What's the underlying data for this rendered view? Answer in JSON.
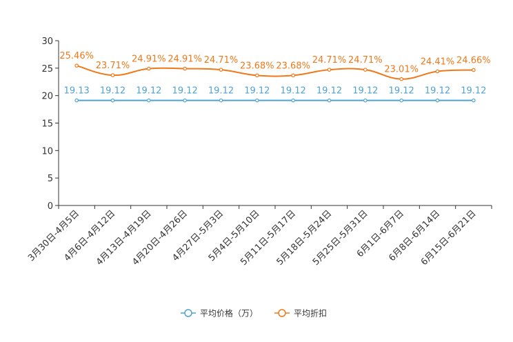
{
  "chart_data": {
    "type": "line",
    "categories": [
      "3月30日-4月5日",
      "4月6日-4月12日",
      "4月13日-4月19日",
      "4月20日-4月26日",
      "4月27日-5月3日",
      "5月4日-5月10日",
      "5月11日-5月17日",
      "5月18日-5月24日",
      "5月25日-5月31日",
      "6月1日-6月7日",
      "6月8日-6月14日",
      "6月15日-6月21日"
    ],
    "series": [
      {
        "name": "平均价格（万）",
        "color": "#4fa3d1",
        "values": [
          19.13,
          19.12,
          19.12,
          19.12,
          19.12,
          19.12,
          19.12,
          19.12,
          19.12,
          19.12,
          19.12,
          19.12
        ],
        "labels": [
          "19.13",
          "19.12",
          "19.12",
          "19.12",
          "19.12",
          "19.12",
          "19.12",
          "19.12",
          "19.12",
          "19.12",
          "19.12",
          "19.12"
        ]
      },
      {
        "name": "平均折扣",
        "color": "#f07818",
        "values": [
          25.46,
          23.71,
          24.91,
          24.91,
          24.71,
          23.68,
          23.68,
          24.71,
          24.71,
          23.01,
          24.41,
          24.66
        ],
        "labels": [
          "25.46%",
          "23.71%",
          "24.91%",
          "24.91%",
          "24.71%",
          "23.68%",
          "23.68%",
          "24.71%",
          "24.71%",
          "23.01%",
          "24.41%",
          "24.66%"
        ]
      }
    ],
    "ylim": [
      0,
      30
    ],
    "yticks": [
      0,
      5,
      10,
      15,
      20,
      25,
      30
    ],
    "grid": false,
    "legend": "bottom-center"
  }
}
